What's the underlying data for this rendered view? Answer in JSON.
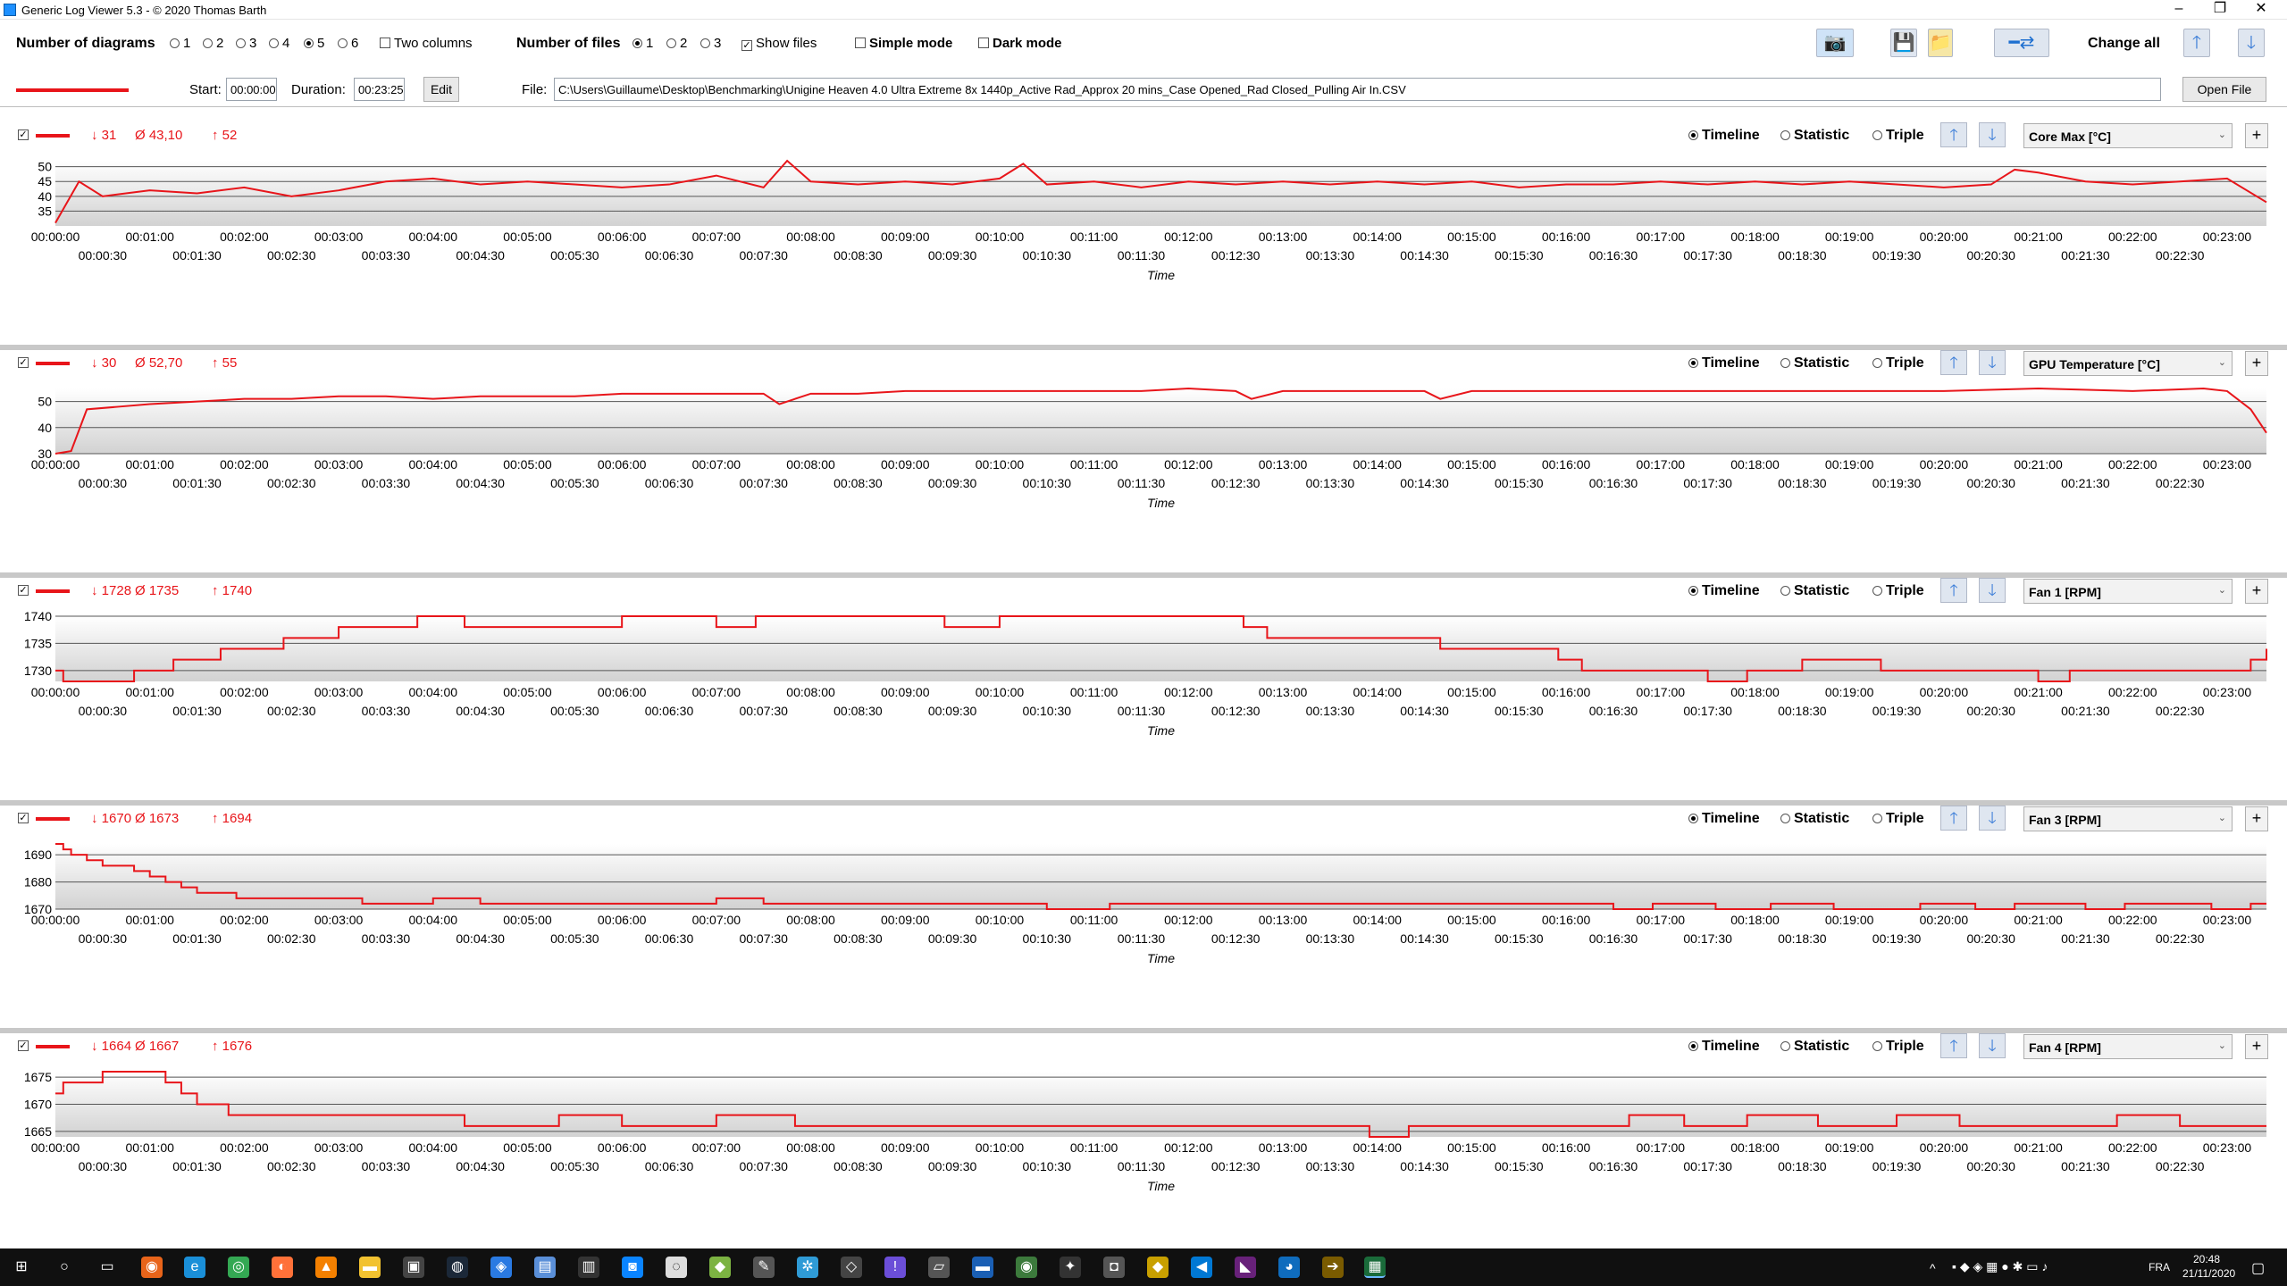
{
  "window": {
    "title": "Generic Log Viewer 5.3 - © 2020 Thomas Barth",
    "minimize": "–",
    "maximize": "❐",
    "close": "✕"
  },
  "toolbar": {
    "diagrams_label": "Number of diagrams",
    "diagram_options": [
      "1",
      "2",
      "3",
      "4",
      "5",
      "6"
    ],
    "diagram_selected": "5",
    "two_columns_label": "Two columns",
    "files_label": "Number of files",
    "file_options": [
      "1",
      "2",
      "3"
    ],
    "file_selected": "1",
    "show_files_label": "Show files",
    "simple_mode_label": "Simple mode",
    "dark_mode_label": "Dark mode",
    "change_all_label": "Change all"
  },
  "timerow": {
    "start_label": "Start:",
    "start_value": "00:00:00",
    "duration_label": "Duration:",
    "duration_value": "00:23:25",
    "edit_label": "Edit",
    "file_label": "File:",
    "file_path": "C:\\Users\\Guillaume\\Desktop\\Benchmarking\\Unigine Heaven 4.0 Ultra Extreme 8x 1440p_Active Rad_Approx 20 mins_Case Opened_Rad Closed_Pulling Air In.CSV",
    "open_file_label": "Open File"
  },
  "panel_options": {
    "timeline": "Timeline",
    "statistic": "Statistic",
    "triple": "Triple"
  },
  "panels": [
    {
      "min": "↓ 31",
      "avg": "Ø 43,10",
      "max": "↑ 52",
      "sensor": "Core Max [°C]"
    },
    {
      "min": "↓ 30",
      "avg": "Ø 52,70",
      "max": "↑ 55",
      "sensor": "GPU Temperature [°C]"
    },
    {
      "min": "↓ 1728",
      "avg": "Ø 1735",
      "max": "↑ 1740",
      "sensor": "Fan 1 [RPM]"
    },
    {
      "min": "↓ 1670",
      "avg": "Ø 1673",
      "max": "↑ 1694",
      "sensor": "Fan 3 [RPM]"
    },
    {
      "min": "↓ 1664",
      "avg": "Ø 1667",
      "max": "↑ 1676",
      "sensor": "Fan 4 [RPM]"
    }
  ],
  "taskbar": {
    "time": "20:48",
    "date": "21/11/2020",
    "lang": "FRA"
  },
  "chart_data": [
    {
      "type": "line",
      "series": [
        {
          "name": "Core Max [°C]",
          "color": "#e8151a",
          "x": [
            "00:00:00",
            "00:00:15",
            "00:00:30",
            "00:01:00",
            "00:01:30",
            "00:02:00",
            "00:02:30",
            "00:03:00",
            "00:03:30",
            "00:04:00",
            "00:04:30",
            "00:05:00",
            "00:05:30",
            "00:06:00",
            "00:06:30",
            "00:07:00",
            "00:07:30",
            "00:07:45",
            "00:08:00",
            "00:08:30",
            "00:09:00",
            "00:09:30",
            "00:10:00",
            "00:10:15",
            "00:10:30",
            "00:11:00",
            "00:11:30",
            "00:12:00",
            "00:12:30",
            "00:13:00",
            "00:13:30",
            "00:14:00",
            "00:14:30",
            "00:15:00",
            "00:15:30",
            "00:16:00",
            "00:16:30",
            "00:17:00",
            "00:17:30",
            "00:18:00",
            "00:18:30",
            "00:19:00",
            "00:19:30",
            "00:20:00",
            "00:20:30",
            "00:20:45",
            "00:21:00",
            "00:21:30",
            "00:22:00",
            "00:22:30",
            "00:23:00",
            "00:23:25"
          ],
          "y": [
            31,
            45,
            40,
            42,
            41,
            43,
            40,
            42,
            45,
            46,
            44,
            45,
            44,
            43,
            44,
            47,
            43,
            52,
            45,
            44,
            45,
            44,
            46,
            51,
            44,
            45,
            43,
            45,
            44,
            45,
            44,
            45,
            44,
            45,
            43,
            44,
            44,
            45,
            44,
            45,
            44,
            45,
            44,
            43,
            44,
            49,
            48,
            45,
            44,
            45,
            46,
            38
          ]
        }
      ],
      "xlabel": "Time",
      "ylim": [
        30,
        52
      ],
      "yticks": [
        35,
        40,
        45,
        50
      ]
    },
    {
      "type": "line",
      "series": [
        {
          "name": "GPU Temperature [°C]",
          "color": "#e8151a",
          "x": [
            "00:00:00",
            "00:00:10",
            "00:00:20",
            "00:00:40",
            "00:01:00",
            "00:01:30",
            "00:02:00",
            "00:02:30",
            "00:03:00",
            "00:03:30",
            "00:04:00",
            "00:04:30",
            "00:05:00",
            "00:05:30",
            "00:06:00",
            "00:06:30",
            "00:07:00",
            "00:07:30",
            "00:07:40",
            "00:08:00",
            "00:08:30",
            "00:09:00",
            "00:09:30",
            "00:10:00",
            "00:10:30",
            "00:11:00",
            "00:11:30",
            "00:12:00",
            "00:12:30",
            "00:12:40",
            "00:13:00",
            "00:13:30",
            "00:14:00",
            "00:14:30",
            "00:14:40",
            "00:15:00",
            "00:16:00",
            "00:17:00",
            "00:18:00",
            "00:19:00",
            "00:20:00",
            "00:21:00",
            "00:22:00",
            "00:22:45",
            "00:23:00",
            "00:23:15",
            "00:23:25"
          ],
          "y": [
            30,
            31,
            47,
            48,
            49,
            50,
            51,
            51,
            52,
            52,
            51,
            52,
            52,
            52,
            53,
            53,
            53,
            53,
            49,
            53,
            53,
            54,
            54,
            54,
            54,
            54,
            54,
            55,
            54,
            51,
            54,
            54,
            54,
            54,
            51,
            54,
            54,
            54,
            54,
            54,
            54,
            55,
            54,
            55,
            54,
            47,
            38
          ]
        }
      ],
      "xlabel": "Time",
      "ylim": [
        30,
        55
      ],
      "yticks": [
        30,
        40,
        50
      ]
    },
    {
      "type": "line",
      "step": true,
      "series": [
        {
          "name": "Fan 1 [RPM]",
          "color": "#e8151a",
          "x": [
            "00:00:00",
            "00:00:05",
            "00:00:50",
            "00:01:15",
            "00:01:45",
            "00:02:25",
            "00:03:00",
            "00:03:50",
            "00:04:20",
            "00:06:00",
            "00:07:00",
            "00:07:25",
            "00:08:00",
            "00:09:25",
            "00:10:00",
            "00:12:35",
            "00:12:50",
            "00:14:40",
            "00:15:55",
            "00:16:10",
            "00:17:30",
            "00:17:55",
            "00:18:30",
            "00:19:20",
            "00:20:05",
            "00:21:00",
            "00:21:20",
            "00:22:30",
            "00:23:15",
            "00:23:25"
          ],
          "y": [
            1730,
            1728,
            1730,
            1732,
            1734,
            1736,
            1738,
            1740,
            1738,
            1740,
            1738,
            1740,
            1740,
            1738,
            1740,
            1738,
            1736,
            1734,
            1732,
            1730,
            1728,
            1730,
            1732,
            1730,
            1730,
            1728,
            1730,
            1730,
            1732,
            1734
          ]
        }
      ],
      "xlabel": "Time",
      "ylim": [
        1728,
        1740
      ],
      "yticks": [
        1730,
        1735,
        1740
      ]
    },
    {
      "type": "line",
      "step": true,
      "series": [
        {
          "name": "Fan 3 [RPM]",
          "color": "#e8151a",
          "x": [
            "00:00:00",
            "00:00:05",
            "00:00:10",
            "00:00:20",
            "00:00:30",
            "00:00:50",
            "00:01:00",
            "00:01:10",
            "00:01:20",
            "00:01:30",
            "00:01:55",
            "00:03:15",
            "00:04:00",
            "00:04:30",
            "00:07:00",
            "00:07:30",
            "00:10:30",
            "00:11:10",
            "00:16:30",
            "00:16:55",
            "00:17:35",
            "00:18:10",
            "00:18:50",
            "00:19:45",
            "00:20:20",
            "00:20:45",
            "00:21:30",
            "00:21:55",
            "00:22:50",
            "00:23:15",
            "00:23:25"
          ],
          "y": [
            1694,
            1692,
            1690,
            1688,
            1686,
            1684,
            1682,
            1680,
            1678,
            1676,
            1674,
            1672,
            1674,
            1672,
            1674,
            1672,
            1670,
            1672,
            1670,
            1672,
            1670,
            1672,
            1670,
            1672,
            1670,
            1672,
            1670,
            1672,
            1670,
            1672,
            1672
          ]
        }
      ],
      "xlabel": "Time",
      "ylim": [
        1670,
        1694
      ],
      "yticks": [
        1670,
        1680,
        1690
      ]
    },
    {
      "type": "line",
      "step": true,
      "series": [
        {
          "name": "Fan 4 [RPM]",
          "color": "#e8151a",
          "x": [
            "00:00:00",
            "00:00:05",
            "00:00:10",
            "00:00:30",
            "00:00:55",
            "00:01:10",
            "00:01:20",
            "00:01:30",
            "00:01:50",
            "00:04:20",
            "00:05:20",
            "00:06:00",
            "00:07:00",
            "00:07:50",
            "00:13:20",
            "00:13:55",
            "00:14:20",
            "00:16:20",
            "00:16:40",
            "00:17:15",
            "00:17:55",
            "00:18:40",
            "00:19:30",
            "00:20:10",
            "00:20:55",
            "00:21:50",
            "00:22:30",
            "00:23:25"
          ],
          "y": [
            1672,
            1674,
            1674,
            1676,
            1676,
            1674,
            1672,
            1670,
            1668,
            1666,
            1668,
            1666,
            1668,
            1666,
            1666,
            1664,
            1666,
            1666,
            1668,
            1666,
            1668,
            1666,
            1668,
            1666,
            1666,
            1668,
            1666,
            1666
          ]
        }
      ],
      "xlabel": "Time",
      "ylim": [
        1664,
        1676
      ],
      "yticks": [
        1665,
        1670,
        1675
      ]
    }
  ]
}
